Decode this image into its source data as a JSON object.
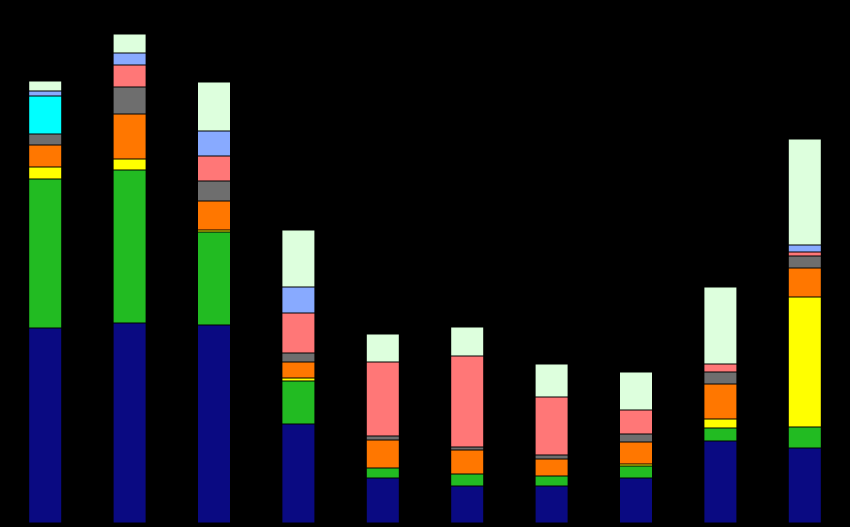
{
  "chart_data": {
    "type": "stacked_bar",
    "categories": [
      null,
      null,
      null,
      null,
      null,
      null,
      null,
      null,
      null,
      null
    ],
    "ylim": [
      0,
      523
    ],
    "series": [
      {
        "color": "#0a0a82",
        "values": [
          195,
          200,
          198,
          99,
          45,
          37,
          37,
          45,
          82,
          75
        ]
      },
      {
        "color": "#22bb22",
        "values": [
          149,
          153,
          93,
          43,
          10,
          12,
          10,
          12,
          13,
          21
        ]
      },
      {
        "color": "#ffff00",
        "values": [
          12,
          11,
          2,
          3,
          0,
          0,
          0,
          2,
          9,
          130
        ]
      },
      {
        "color": "#ff7700",
        "values": [
          22,
          45,
          29,
          16,
          28,
          24,
          17,
          22,
          35,
          29
        ]
      },
      {
        "color": "#6e6e6e",
        "values": [
          11,
          27,
          20,
          9,
          4,
          3,
          4,
          8,
          12,
          12
        ]
      },
      {
        "color": "#00ffff",
        "values": [
          38,
          0,
          0,
          0,
          0,
          0,
          0,
          0,
          0,
          0
        ]
      },
      {
        "color": "#ff7777",
        "values": [
          0,
          22,
          25,
          40,
          74,
          91,
          58,
          24,
          8,
          4
        ]
      },
      {
        "color": "#88aaff",
        "values": [
          5,
          12,
          25,
          26,
          0,
          0,
          0,
          0,
          0,
          7
        ]
      },
      {
        "color": "#ddffdd",
        "values": [
          10,
          19,
          49,
          57,
          28,
          29,
          33,
          38,
          77,
          106
        ]
      }
    ]
  }
}
